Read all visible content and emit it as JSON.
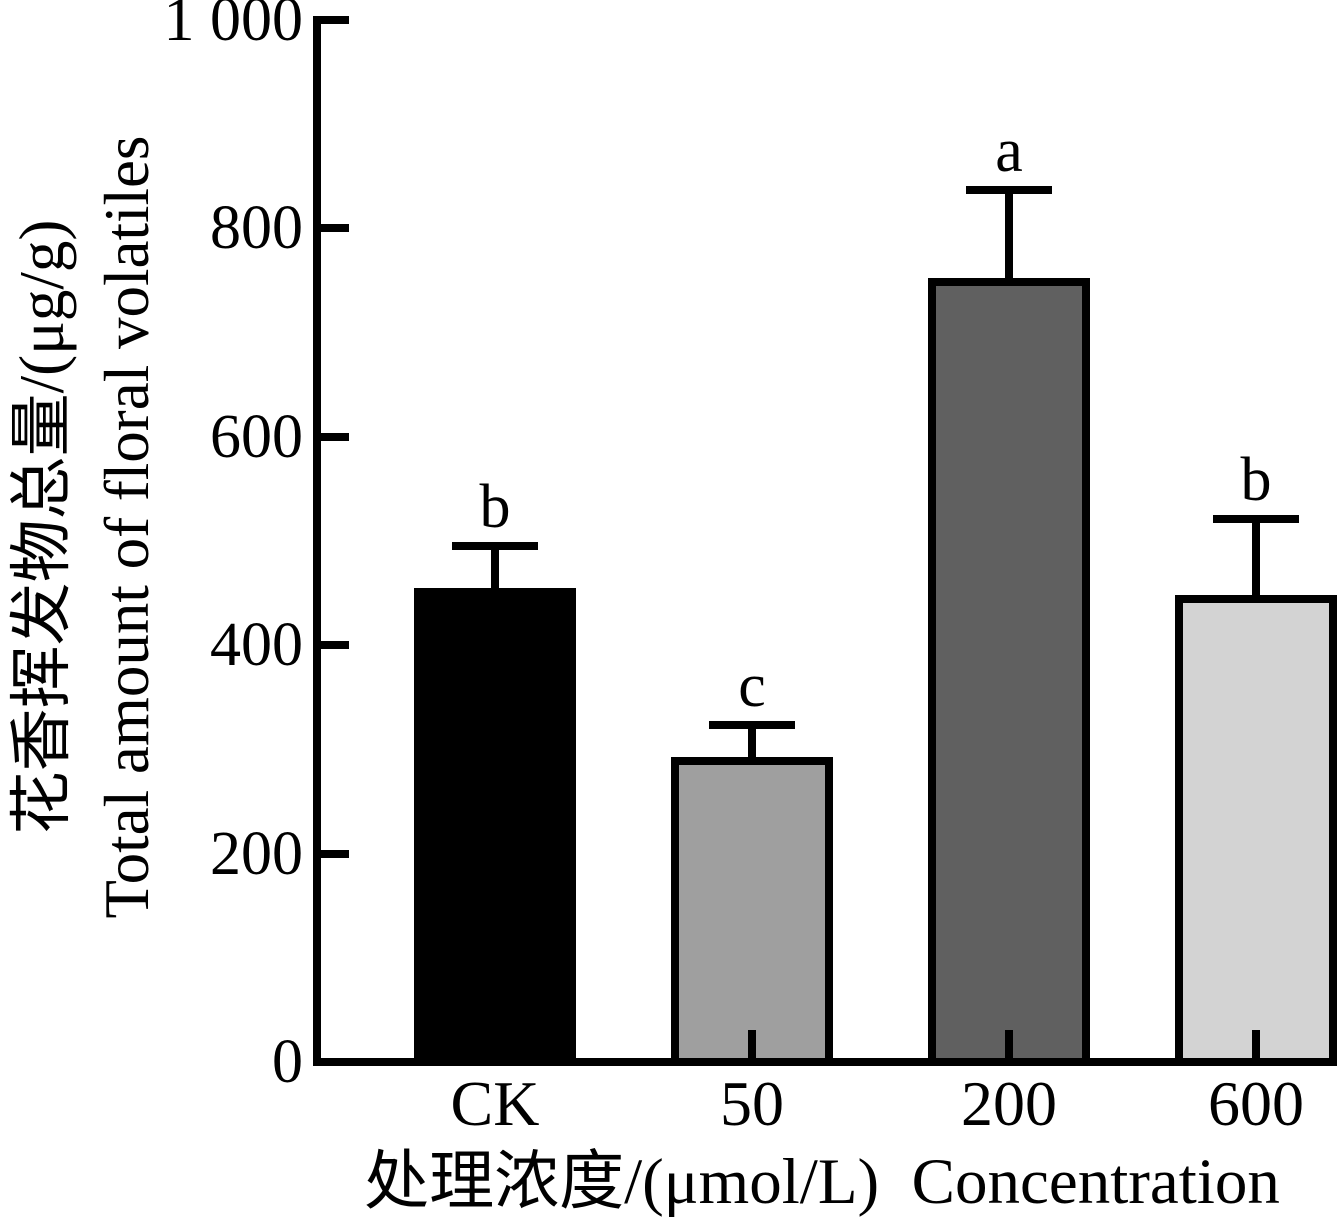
{
  "chart_data": {
    "type": "bar",
    "title": "",
    "categories": [
      "CK",
      "50",
      "200",
      "600"
    ],
    "values": [
      455,
      293,
      752,
      448
    ],
    "errors": [
      40,
      30,
      85,
      73
    ],
    "sig_letters": [
      "b",
      "c",
      "a",
      "b"
    ],
    "bar_colors": [
      "#000000",
      "#9f9f9f",
      "#606060",
      "#d3d3d3"
    ],
    "bar_border_color": "#000000",
    "ylabel_zh": "花香挥发物总量/(μg/g)",
    "ylabel_en": "Total amount of floral volatiles",
    "xlabel": "处理浓度/(μmol/L)  Concentration",
    "ylim": [
      0,
      1000
    ],
    "yticks": [
      {
        "value": 1000,
        "label": "1 000"
      },
      {
        "value": 800,
        "label": "800"
      },
      {
        "value": 600,
        "label": "600"
      },
      {
        "value": 400,
        "label": "400"
      },
      {
        "value": 200,
        "label": "200"
      },
      {
        "value": 0,
        "label": "0"
      }
    ],
    "grid": false,
    "legend": "none",
    "axis_color": "#000000",
    "background": "#ffffff"
  }
}
